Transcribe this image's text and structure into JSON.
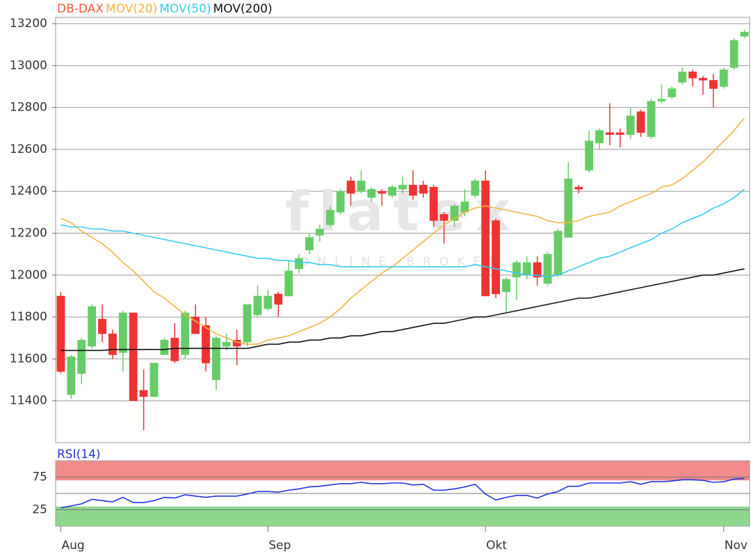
{
  "chart_data": [
    {
      "type": "candlestick",
      "name": "DB-DAX",
      "name_color": "#f05a3c",
      "up_color": "#66cc66",
      "down_color": "#ee3333",
      "open": [
        11900,
        11430,
        11530,
        11660,
        11790,
        11720,
        11630,
        11820,
        11450,
        11420,
        11620,
        11700,
        11620,
        11800,
        11760,
        11500,
        11660,
        11690,
        11680,
        11810,
        11840,
        11910,
        11900,
        12030,
        12120,
        12190,
        12240,
        12300,
        12450,
        12400,
        12370,
        12400,
        12380,
        12410,
        12430,
        12430,
        12420,
        12290,
        12260,
        12300,
        12380,
        12450,
        12260,
        11920,
        11990,
        12000,
        12060,
        11960,
        12000,
        12180,
        12420,
        12500,
        12630,
        12680,
        12680,
        12670,
        12780,
        12660,
        12830,
        12850,
        12920,
        12970,
        12940,
        12930,
        12900,
        12990,
        13140
      ],
      "high": [
        11920,
        11620,
        11700,
        11860,
        11860,
        11740,
        11830,
        11820,
        11550,
        11580,
        11700,
        11770,
        11830,
        11860,
        11800,
        11710,
        11720,
        11740,
        11860,
        11950,
        11930,
        11920,
        12070,
        12100,
        12200,
        12240,
        12330,
        12410,
        12470,
        12500,
        12420,
        12410,
        12430,
        12470,
        12500,
        12450,
        12430,
        12300,
        12340,
        12410,
        12460,
        12500,
        12270,
        11990,
        12070,
        12090,
        12090,
        12110,
        12220,
        12540,
        12430,
        12690,
        12700,
        12820,
        12700,
        12800,
        12790,
        12840,
        12910,
        12900,
        12990,
        12980,
        12950,
        12960,
        12990,
        13130,
        13170
      ],
      "low": [
        11530,
        11410,
        11480,
        11650,
        11680,
        11600,
        11540,
        11400,
        11260,
        11420,
        11620,
        11580,
        11600,
        11720,
        11540,
        11450,
        11640,
        11570,
        11660,
        11800,
        11830,
        11800,
        11900,
        12010,
        12100,
        12160,
        12230,
        12290,
        12330,
        12390,
        12350,
        12330,
        12370,
        12390,
        12360,
        12370,
        12230,
        12150,
        12230,
        12280,
        12370,
        11900,
        11890,
        11820,
        11880,
        11980,
        11950,
        11950,
        11990,
        12180,
        12390,
        12490,
        12600,
        12620,
        12610,
        12650,
        12660,
        12650,
        12820,
        12840,
        12910,
        12900,
        12860,
        12800,
        12890,
        12980,
        13130
      ],
      "close": [
        11540,
        11610,
        11690,
        11850,
        11720,
        11620,
        11820,
        11400,
        11420,
        11580,
        11690,
        11590,
        11820,
        11720,
        11580,
        11700,
        11680,
        11660,
        11860,
        11900,
        11900,
        11860,
        12020,
        12080,
        12180,
        12220,
        12310,
        12400,
        12390,
        12450,
        12410,
        12390,
        12420,
        12430,
        12380,
        12390,
        12260,
        12260,
        12330,
        12350,
        12450,
        11900,
        11910,
        11980,
        12060,
        12060,
        11990,
        12100,
        12210,
        12460,
        12410,
        12640,
        12690,
        12670,
        12670,
        12760,
        12680,
        12830,
        12840,
        12890,
        12970,
        12940,
        12930,
        12890,
        12980,
        13120,
        13160
      ],
      "overlays": [
        {
          "name": "MOV(20)",
          "color": "#f5b342",
          "values": [
            12270,
            12250,
            12210,
            12180,
            12150,
            12110,
            12060,
            12020,
            11970,
            11920,
            11890,
            11850,
            11810,
            11780,
            11750,
            11720,
            11700,
            11680,
            11670,
            11670,
            11690,
            11700,
            11710,
            11730,
            11750,
            11770,
            11800,
            11840,
            11890,
            11930,
            11970,
            12010,
            12040,
            12080,
            12120,
            12160,
            12200,
            12240,
            12270,
            12300,
            12320,
            12330,
            12320,
            12310,
            12300,
            12290,
            12280,
            12260,
            12250,
            12250,
            12260,
            12280,
            12290,
            12300,
            12330,
            12350,
            12370,
            12390,
            12420,
            12430,
            12460,
            12500,
            12540,
            12590,
            12640,
            12690,
            12750
          ]
        },
        {
          "name": "MOV(50)",
          "color": "#33ccee",
          "values": [
            12240,
            12230,
            12230,
            12220,
            12220,
            12210,
            12210,
            12200,
            12190,
            12180,
            12170,
            12160,
            12150,
            12140,
            12130,
            12120,
            12110,
            12100,
            12090,
            12080,
            12080,
            12070,
            12070,
            12060,
            12060,
            12050,
            12050,
            12040,
            12040,
            12040,
            12040,
            12040,
            12040,
            12040,
            12040,
            12040,
            12040,
            12040,
            12040,
            12040,
            12050,
            12040,
            12030,
            12020,
            12010,
            12000,
            12000,
            11990,
            12000,
            12020,
            12040,
            12060,
            12080,
            12090,
            12110,
            12130,
            12150,
            12170,
            12200,
            12220,
            12250,
            12270,
            12290,
            12320,
            12340,
            12370,
            12410
          ]
        },
        {
          "name": "MOV(200)",
          "color": "#111111",
          "values": [
            11640,
            11640,
            11640,
            11640,
            11640,
            11645,
            11645,
            11645,
            11645,
            11645,
            11645,
            11650,
            11650,
            11650,
            11650,
            11650,
            11650,
            11650,
            11650,
            11660,
            11670,
            11670,
            11680,
            11680,
            11690,
            11690,
            11700,
            11700,
            11710,
            11710,
            11720,
            11730,
            11730,
            11740,
            11750,
            11760,
            11770,
            11770,
            11780,
            11790,
            11800,
            11800,
            11810,
            11820,
            11830,
            11840,
            11850,
            11860,
            11870,
            11880,
            11890,
            11890,
            11900,
            11910,
            11920,
            11930,
            11940,
            11950,
            11960,
            11970,
            11980,
            11990,
            12000,
            12000,
            12010,
            12020,
            12030
          ]
        }
      ],
      "ylim": [
        11200,
        13230
      ],
      "yticks": [
        11400,
        11600,
        11800,
        12000,
        12200,
        12400,
        12600,
        12800,
        13000,
        13200
      ],
      "grid": true,
      "watermark": [
        "flatex",
        "ONLINE BROKER"
      ]
    },
    {
      "type": "line",
      "categories": [
        "Aug",
        null,
        null,
        null,
        null,
        null,
        null,
        null,
        null,
        null,
        null,
        null,
        null,
        null,
        null,
        null,
        null,
        null,
        null,
        null,
        "Sep",
        null,
        null,
        null,
        null,
        null,
        null,
        null,
        null,
        null,
        null,
        null,
        null,
        null,
        null,
        null,
        null,
        null,
        null,
        null,
        null,
        "Okt",
        null,
        null,
        null,
        null,
        null,
        null,
        null,
        null,
        null,
        null,
        null,
        null,
        null,
        null,
        null,
        null,
        null,
        null,
        null,
        null,
        null,
        null,
        "Nov",
        null,
        null
      ],
      "series": [
        {
          "name": "RSI(14)",
          "color": "#2233dd",
          "values": [
            28,
            31,
            34,
            41,
            39,
            37,
            44,
            36,
            36,
            39,
            44,
            43,
            48,
            46,
            44,
            46,
            46,
            46,
            49,
            53,
            53,
            52,
            55,
            57,
            60,
            61,
            63,
            65,
            65,
            67,
            65,
            65,
            66,
            66,
            63,
            64,
            55,
            55,
            57,
            60,
            64,
            49,
            40,
            44,
            47,
            47,
            43,
            49,
            53,
            61,
            61,
            66,
            66,
            66,
            66,
            68,
            64,
            68,
            68,
            69,
            71,
            71,
            70,
            67,
            68,
            72,
            73
          ]
        }
      ],
      "ylim": [
        0,
        100
      ],
      "yticks": [
        25,
        75
      ],
      "grid": true,
      "midline": 50,
      "zones": [
        {
          "from": 70,
          "to": 100,
          "color": "#f28b8b"
        },
        {
          "from": 0,
          "to": 30,
          "color": "#8fd68f"
        }
      ]
    }
  ]
}
